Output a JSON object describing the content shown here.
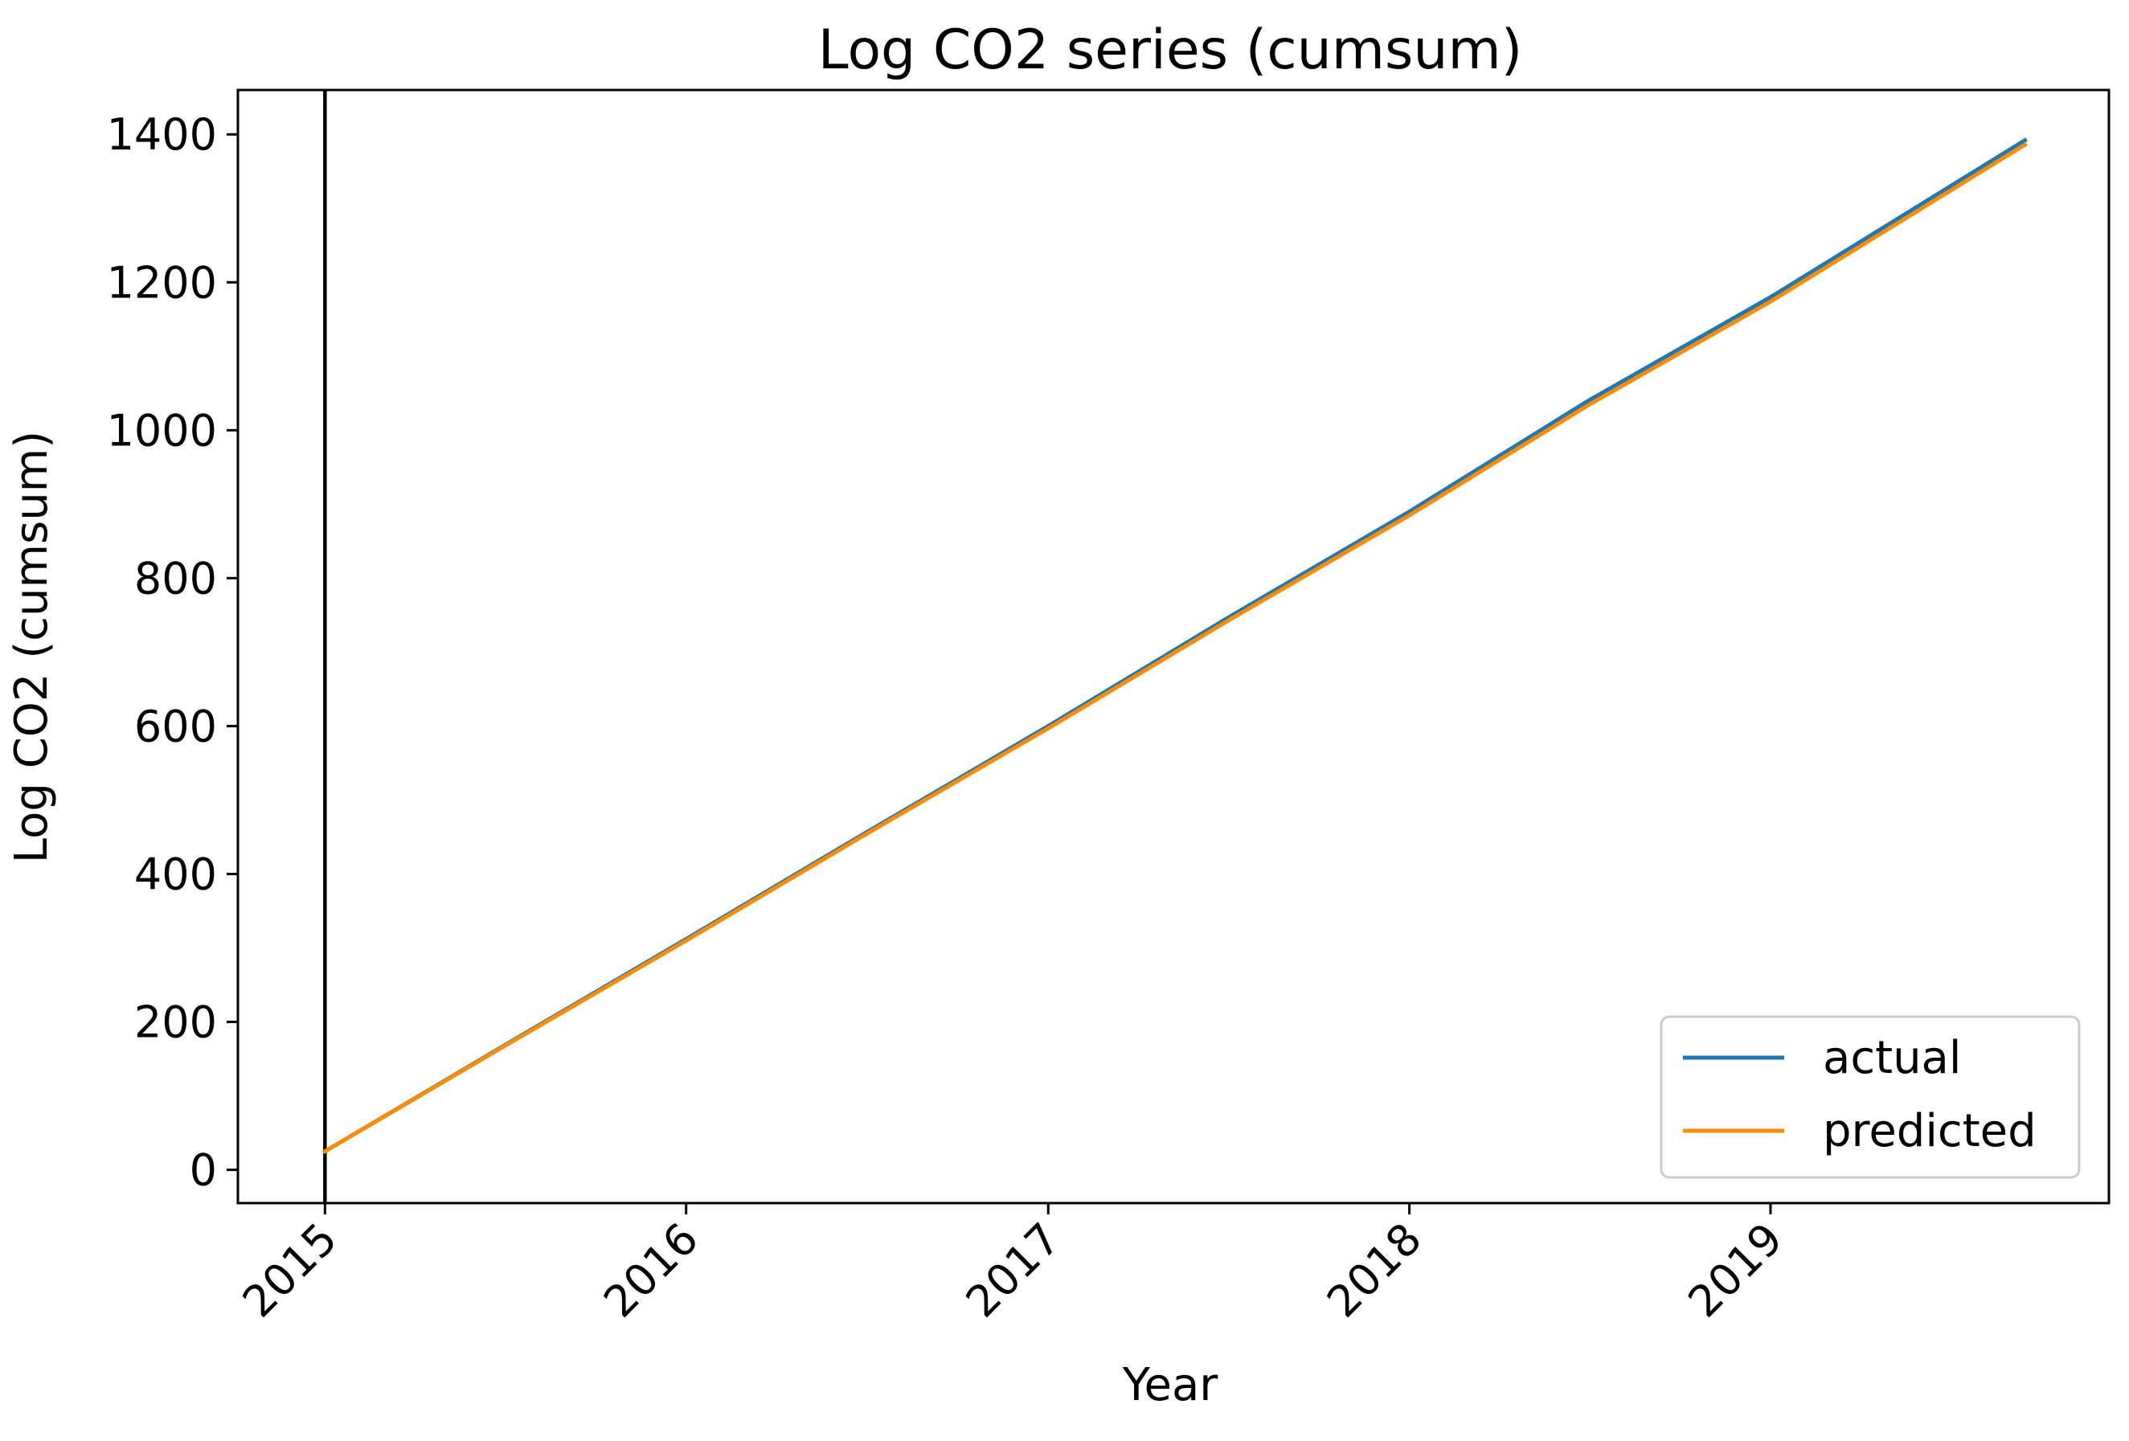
{
  "chart_data": {
    "type": "line",
    "title": "Log CO2 series (cumsum)",
    "xlabel": "Year",
    "ylabel": "Log CO2 (cumsum)",
    "xlim": [
      "2014-10-05",
      "2019-12-09"
    ],
    "ylim": [
      -45,
      1460
    ],
    "x_ticks": [
      "2015",
      "2016",
      "2017",
      "2018",
      "2019"
    ],
    "y_ticks": [
      0,
      200,
      400,
      600,
      800,
      1000,
      1200,
      1400
    ],
    "grid": false,
    "legend": {
      "position": "lower right",
      "entries": [
        "actual",
        "predicted"
      ]
    },
    "vline": {
      "x": "2015-01-01",
      "color": "#000000"
    },
    "series": [
      {
        "name": "actual",
        "color": "#1f77b4",
        "x": [
          "2015-01-01",
          "2015-07-01",
          "2016-01-01",
          "2016-07-01",
          "2017-01-01",
          "2017-07-01",
          "2018-01-01",
          "2018-07-01",
          "2019-01-01",
          "2019-09-15"
        ],
        "y": [
          25,
          168,
          312,
          456,
          600,
          746,
          890,
          1040,
          1180,
          1392
        ]
      },
      {
        "name": "predicted",
        "color": "#ff8c00",
        "x": [
          "2015-01-01",
          "2015-07-01",
          "2016-01-01",
          "2016-07-01",
          "2017-01-01",
          "2017-07-01",
          "2018-01-01",
          "2018-07-01",
          "2019-01-01",
          "2019-09-15"
        ],
        "y": [
          25,
          167,
          310,
          454,
          597,
          742,
          885,
          1034,
          1174,
          1386
        ]
      }
    ]
  }
}
